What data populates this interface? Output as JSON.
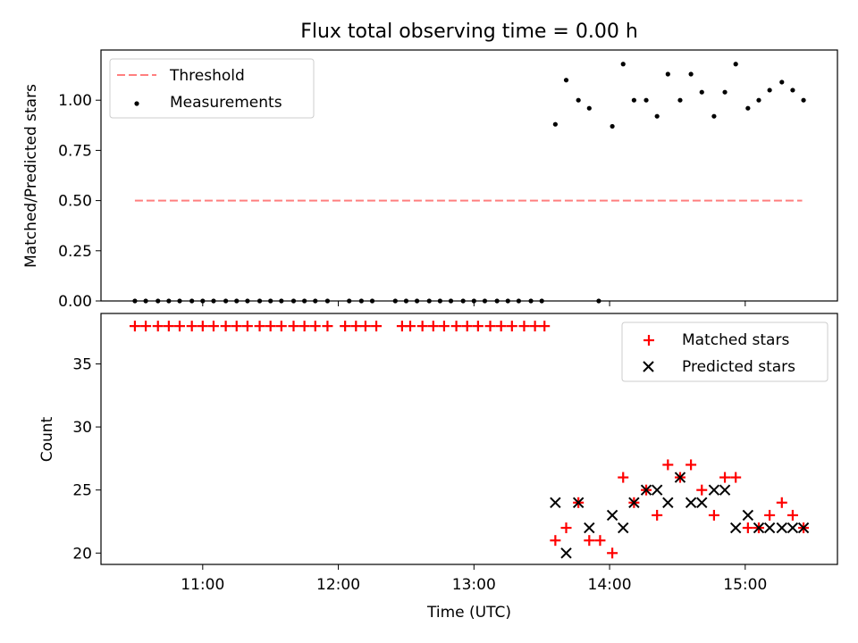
{
  "title": "Flux total observing time = 0.00 h",
  "chart_data": [
    {
      "type": "scatter",
      "panel": "top",
      "ylabel": "Matched/Predicted stars",
      "ylim": [
        0,
        1.25
      ],
      "yticks": [
        "0.00",
        "0.25",
        "0.50",
        "0.75",
        "1.00"
      ],
      "legend_position": "top-left",
      "threshold": {
        "name": "Threshold",
        "color": "#ff7f7f",
        "value": 0.5,
        "x_range": [
          10.5,
          15.42
        ]
      },
      "measurements": {
        "name": "Measurements",
        "color": "#000000",
        "points": [
          [
            10.5,
            0
          ],
          [
            10.58,
            0
          ],
          [
            10.67,
            0
          ],
          [
            10.75,
            0
          ],
          [
            10.83,
            0
          ],
          [
            10.92,
            0
          ],
          [
            11.0,
            0
          ],
          [
            11.08,
            0
          ],
          [
            11.17,
            0
          ],
          [
            11.25,
            0
          ],
          [
            11.33,
            0
          ],
          [
            11.42,
            0
          ],
          [
            11.5,
            0
          ],
          [
            11.58,
            0
          ],
          [
            11.67,
            0
          ],
          [
            11.75,
            0
          ],
          [
            11.83,
            0
          ],
          [
            11.92,
            0
          ],
          [
            12.08,
            0
          ],
          [
            12.17,
            0
          ],
          [
            12.25,
            0
          ],
          [
            12.42,
            0
          ],
          [
            12.5,
            0
          ],
          [
            12.58,
            0
          ],
          [
            12.67,
            0
          ],
          [
            12.75,
            0
          ],
          [
            12.83,
            0
          ],
          [
            12.92,
            0
          ],
          [
            13.0,
            0
          ],
          [
            13.08,
            0
          ],
          [
            13.17,
            0
          ],
          [
            13.25,
            0
          ],
          [
            13.33,
            0
          ],
          [
            13.42,
            0
          ],
          [
            13.5,
            0
          ],
          [
            13.92,
            0
          ],
          [
            13.6,
            0.88
          ],
          [
            13.68,
            1.1
          ],
          [
            13.77,
            1.0
          ],
          [
            13.85,
            0.96
          ],
          [
            14.02,
            0.87
          ],
          [
            14.1,
            1.18
          ],
          [
            14.18,
            1.0
          ],
          [
            14.27,
            1.0
          ],
          [
            14.35,
            0.92
          ],
          [
            14.43,
            1.13
          ],
          [
            14.52,
            1.0
          ],
          [
            14.6,
            1.13
          ],
          [
            14.68,
            1.04
          ],
          [
            14.77,
            0.92
          ],
          [
            14.85,
            1.04
          ],
          [
            14.93,
            1.18
          ],
          [
            15.02,
            0.96
          ],
          [
            15.1,
            1.0
          ],
          [
            15.18,
            1.05
          ],
          [
            15.27,
            1.09
          ],
          [
            15.35,
            1.05
          ],
          [
            15.43,
            1.0
          ]
        ]
      }
    },
    {
      "type": "scatter",
      "panel": "bottom",
      "xlabel": "Time (UTC)",
      "ylabel": "Count",
      "xlim": [
        10.25,
        15.68
      ],
      "ylim": [
        19.1,
        39.0
      ],
      "xticks": [
        "11:00",
        "12:00",
        "13:00",
        "14:00",
        "15:00"
      ],
      "xtick_values": [
        11,
        12,
        13,
        14,
        15
      ],
      "yticks": [
        "20",
        "25",
        "30",
        "35"
      ],
      "legend_position": "top-right",
      "series": [
        {
          "name": "Matched stars",
          "marker": "+",
          "color": "#ff0000",
          "points": [
            [
              10.5,
              38
            ],
            [
              10.58,
              38
            ],
            [
              10.67,
              38
            ],
            [
              10.75,
              38
            ],
            [
              10.83,
              38
            ],
            [
              10.92,
              38
            ],
            [
              11.0,
              38
            ],
            [
              11.08,
              38
            ],
            [
              11.17,
              38
            ],
            [
              11.25,
              38
            ],
            [
              11.33,
              38
            ],
            [
              11.42,
              38
            ],
            [
              11.5,
              38
            ],
            [
              11.58,
              38
            ],
            [
              11.67,
              38
            ],
            [
              11.75,
              38
            ],
            [
              11.83,
              38
            ],
            [
              11.92,
              38
            ],
            [
              12.05,
              38
            ],
            [
              12.13,
              38
            ],
            [
              12.2,
              38
            ],
            [
              12.28,
              38
            ],
            [
              12.47,
              38
            ],
            [
              12.53,
              38
            ],
            [
              12.62,
              38
            ],
            [
              12.7,
              38
            ],
            [
              12.78,
              38
            ],
            [
              12.87,
              38
            ],
            [
              12.95,
              38
            ],
            [
              13.03,
              38
            ],
            [
              13.12,
              38
            ],
            [
              13.2,
              38
            ],
            [
              13.28,
              38
            ],
            [
              13.37,
              38
            ],
            [
              13.45,
              38
            ],
            [
              13.52,
              38
            ],
            [
              13.6,
              21
            ],
            [
              13.68,
              22
            ],
            [
              13.77,
              24
            ],
            [
              13.85,
              21
            ],
            [
              13.93,
              21
            ],
            [
              14.02,
              20
            ],
            [
              14.1,
              26
            ],
            [
              14.18,
              24
            ],
            [
              14.27,
              25
            ],
            [
              14.35,
              23
            ],
            [
              14.43,
              27
            ],
            [
              14.52,
              26
            ],
            [
              14.6,
              27
            ],
            [
              14.68,
              25
            ],
            [
              14.77,
              23
            ],
            [
              14.85,
              26
            ],
            [
              14.93,
              26
            ],
            [
              15.02,
              22
            ],
            [
              15.1,
              22
            ],
            [
              15.18,
              23
            ],
            [
              15.27,
              24
            ],
            [
              15.35,
              23
            ],
            [
              15.43,
              22
            ]
          ]
        },
        {
          "name": "Predicted stars",
          "marker": "x",
          "color": "#000000",
          "points": [
            [
              13.6,
              24
            ],
            [
              13.68,
              20
            ],
            [
              13.77,
              24
            ],
            [
              13.85,
              22
            ],
            [
              14.02,
              23
            ],
            [
              14.1,
              22
            ],
            [
              14.18,
              24
            ],
            [
              14.27,
              25
            ],
            [
              14.35,
              25
            ],
            [
              14.43,
              24
            ],
            [
              14.52,
              26
            ],
            [
              14.6,
              24
            ],
            [
              14.68,
              24
            ],
            [
              14.77,
              25
            ],
            [
              14.85,
              25
            ],
            [
              14.93,
              22
            ],
            [
              15.02,
              23
            ],
            [
              15.1,
              22
            ],
            [
              15.18,
              22
            ],
            [
              15.27,
              22
            ],
            [
              15.35,
              22
            ],
            [
              15.43,
              22
            ]
          ]
        }
      ]
    }
  ]
}
